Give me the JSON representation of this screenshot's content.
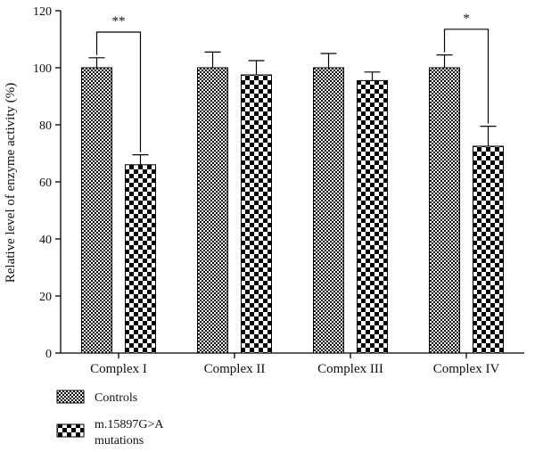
{
  "chart_data": {
    "type": "bar",
    "ylabel": "Relative level of enzyme activity (%)",
    "ylim": [
      0,
      120
    ],
    "yticks": [
      0,
      20,
      40,
      60,
      80,
      100,
      120
    ],
    "categories": [
      "Complex I",
      "Complex II",
      "Complex III",
      "Complex IV"
    ],
    "series": [
      {
        "name": "Controls",
        "values": [
          100,
          100,
          100,
          100
        ],
        "errors": [
          3.5,
          5.5,
          5,
          4.5
        ],
        "pattern": "fine-checker"
      },
      {
        "name": "m.15897G>A\nmutations",
        "values": [
          66,
          97.5,
          95.5,
          72.5
        ],
        "errors": [
          3.5,
          5,
          3,
          7
        ],
        "pattern": "coarse-checker"
      }
    ],
    "significance": [
      {
        "category": "Complex I",
        "label": "**"
      },
      {
        "category": "Complex IV",
        "label": "*"
      }
    ],
    "legend_placement": "bottom-left",
    "grid": false,
    "colors": {
      "bar_fill_dark": "#000000",
      "bar_fill_light": "#ffffff",
      "axis": "#000000"
    }
  }
}
